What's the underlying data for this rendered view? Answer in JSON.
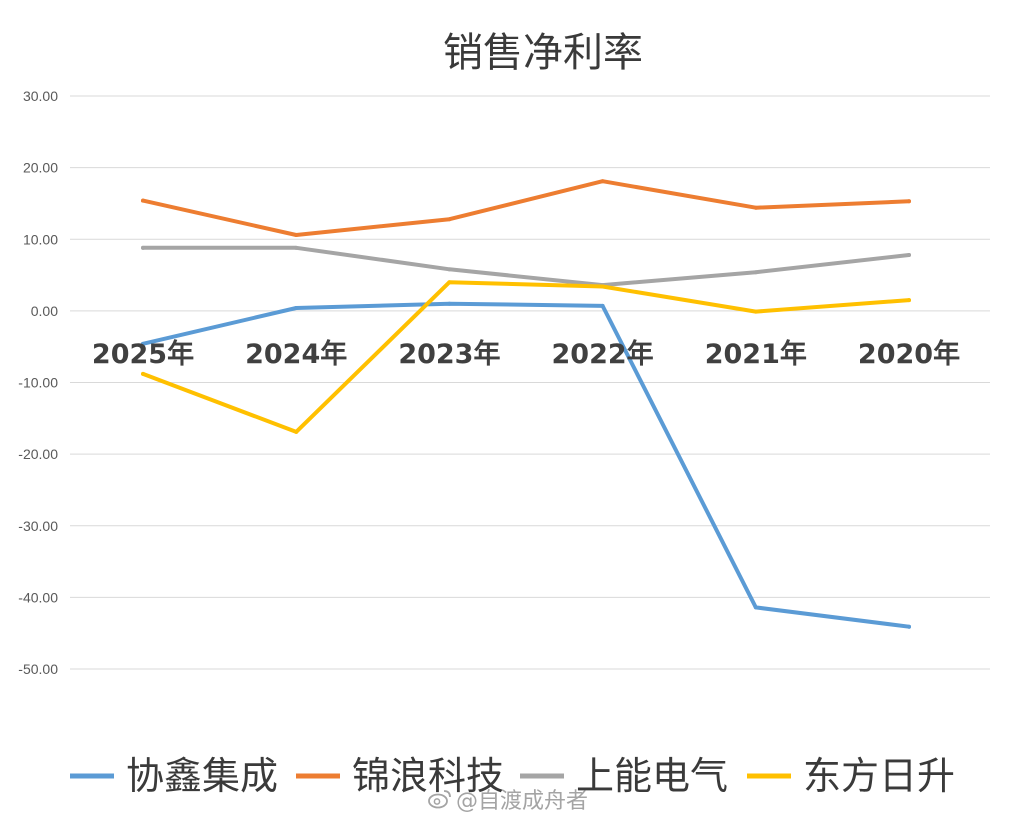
{
  "chart_data": {
    "type": "line",
    "title": "销售净利率",
    "categories": [
      "2025年",
      "2024年",
      "2023年",
      "2022年",
      "2021年",
      "2020年"
    ],
    "ylim": [
      -50,
      30
    ],
    "y_ticks": [
      "30.00",
      "20.00",
      "10.00",
      "0.00",
      "-10.00",
      "-20.00",
      "-30.00",
      "-40.00",
      "-50.00"
    ],
    "grid": true,
    "legend_position": "bottom",
    "series": [
      {
        "name": "协鑫集成",
        "color": "#5b9bd5",
        "values": [
          -4.6,
          0.4,
          1.0,
          0.7,
          -41.4,
          -44.1
        ]
      },
      {
        "name": "锦浪科技",
        "color": "#ed7d31",
        "values": [
          15.4,
          10.6,
          12.8,
          18.1,
          14.4,
          15.3
        ]
      },
      {
        "name": "上能电气",
        "color": "#a5a5a5",
        "values": [
          8.8,
          8.8,
          5.8,
          3.6,
          5.4,
          7.8
        ]
      },
      {
        "name": "东方日升",
        "color": "#ffc000",
        "values": [
          -8.8,
          -16.9,
          4.0,
          3.4,
          -0.1,
          1.5
        ]
      }
    ]
  },
  "watermark": {
    "icon": "weibo-icon",
    "text": "@自渡成舟者"
  }
}
